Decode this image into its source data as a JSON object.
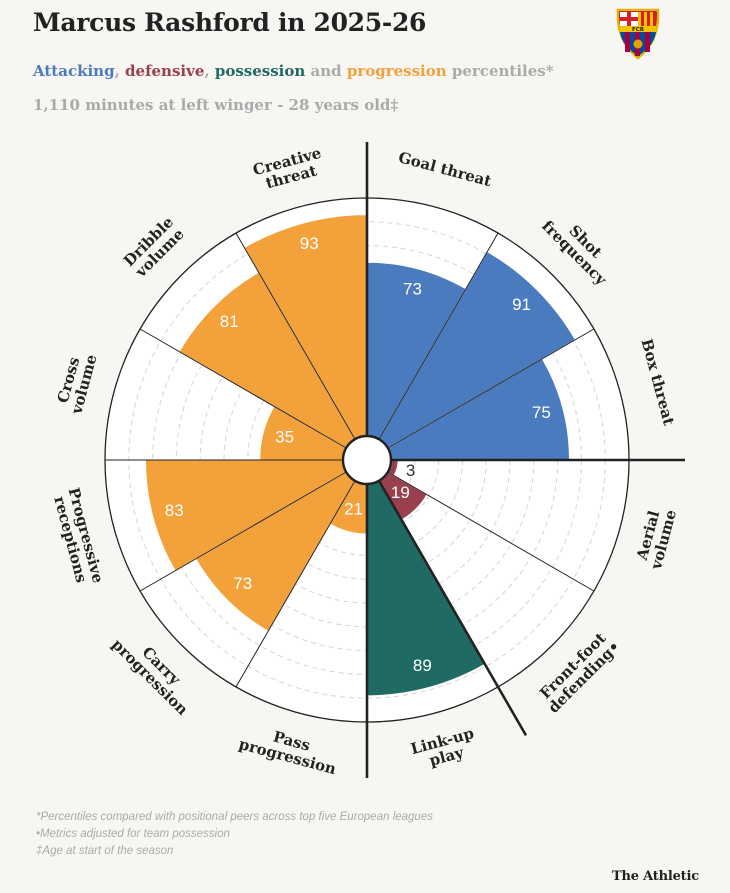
{
  "title": "Marcus Rashford in 2025-26",
  "subtitle": {
    "attacking": "Attacking",
    "sep1": ", ",
    "defensive": "defensive",
    "sep2": ", ",
    "possession": "possession",
    "and": " and ",
    "progression": "progression",
    "rest": " percentiles*"
  },
  "meta": "1,110 minutes at left winger - 28 years old‡",
  "crest": {
    "letters": "FCB",
    "icon": "fc-barcelona-crest"
  },
  "footnotes": [
    "*Percentiles compared with positional peers across top five European leagues",
    "•Metrics adjusted for team possession",
    "‡Age at start of the season"
  ],
  "brand": "The Athletic",
  "colors": {
    "attacking": "#4a7bbf",
    "defensive": "#98404e",
    "possession": "#1f6a63",
    "progression": "#f3a13a"
  },
  "chart_data": {
    "type": "polar-bar",
    "range": [
      0,
      100
    ],
    "grid": true,
    "metrics": [
      {
        "label": [
          "Goal threat"
        ],
        "value": 73,
        "group": "attacking"
      },
      {
        "label": [
          "Shot",
          "frequency"
        ],
        "value": 91,
        "group": "attacking"
      },
      {
        "label": [
          "Box threat"
        ],
        "value": 75,
        "group": "attacking"
      },
      {
        "label": [
          "Aerial",
          "volume"
        ],
        "value": 3,
        "group": "defensive"
      },
      {
        "label": [
          "Front-foot",
          "defending•"
        ],
        "value": 19,
        "group": "defensive"
      },
      {
        "label": [
          "Link-up",
          "play"
        ],
        "value": 89,
        "group": "possession"
      },
      {
        "label": [
          "Pass",
          "progression"
        ],
        "value": 21,
        "group": "progression"
      },
      {
        "label": [
          "Carry",
          "progression"
        ],
        "value": 73,
        "group": "progression"
      },
      {
        "label": [
          "Progressive",
          "receptions"
        ],
        "value": 83,
        "group": "progression"
      },
      {
        "label": [
          "Cross",
          "volume"
        ],
        "value": 35,
        "group": "progression"
      },
      {
        "label": [
          "Dribble",
          "volume"
        ],
        "value": 81,
        "group": "progression"
      },
      {
        "label": [
          "Creative",
          "threat"
        ],
        "value": 93,
        "group": "progression"
      }
    ]
  }
}
